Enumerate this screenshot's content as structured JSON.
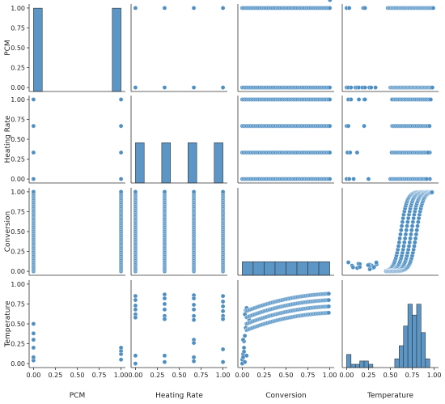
{
  "colors": {
    "mark": "#4e8fc3",
    "edge": "#ffffff",
    "axis": "#333333",
    "bar_fill": "#5b96c7",
    "bar_edge": "#333333"
  },
  "chart_data": {
    "type": "pairplot",
    "variables": [
      "PCM",
      "Heating Rate",
      "Conversion",
      "Temperature"
    ],
    "ticks": {
      "PCM": {
        "values": [
          0.0,
          0.25,
          0.5,
          0.75,
          1.0
        ],
        "labels": [
          "0.00",
          "0.25",
          "0.50",
          "0.75",
          "1.00"
        ]
      },
      "Heating Rate": {
        "values": [
          0.0,
          0.25,
          0.5,
          0.75,
          1.0
        ],
        "labels": [
          "0.00",
          "0.25",
          "0.50",
          "0.75",
          "1.00"
        ]
      },
      "Conversion": {
        "values": [
          0.0,
          0.25,
          0.5,
          0.75,
          1.0
        ],
        "labels": [
          "0.00",
          "0.25",
          "0.50",
          "0.75",
          "1.00"
        ]
      },
      "Temperature": {
        "values": [
          0.0,
          0.25,
          0.5,
          0.75,
          1.0
        ],
        "labels": [
          "0.00",
          "0.25",
          "0.50",
          "0.75",
          "1.00"
        ]
      }
    },
    "ylim": [
      -0.05,
      1.05
    ],
    "heating_rate_levels": [
      0.0,
      0.333,
      0.667,
      1.0
    ],
    "pcm_levels": [
      0.0,
      1.0
    ],
    "diagonal_histograms": [
      {
        "variable": "PCM",
        "bins": [
          [
            0.0,
            0.1,
            1.0
          ],
          [
            0.9,
            1.0,
            1.0
          ]
        ],
        "ymax": 1.05
      },
      {
        "variable": "Heating Rate",
        "bins": [
          [
            0.0,
            0.1,
            0.46
          ],
          [
            0.3,
            0.4,
            0.46
          ],
          [
            0.6,
            0.7,
            0.46
          ],
          [
            0.9,
            1.0,
            0.46
          ]
        ],
        "ymax": 1.0
      },
      {
        "variable": "Conversion",
        "bins": [
          [
            0.0,
            0.125,
            0.155
          ],
          [
            0.125,
            0.25,
            0.155
          ],
          [
            0.25,
            0.375,
            0.155
          ],
          [
            0.375,
            0.5,
            0.155
          ],
          [
            0.5,
            0.625,
            0.155
          ],
          [
            0.625,
            0.75,
            0.155
          ],
          [
            0.75,
            0.875,
            0.155
          ],
          [
            0.875,
            1.0,
            0.155
          ]
        ],
        "ymax": 1.0
      },
      {
        "variable": "Temperature",
        "bins": [
          [
            0.0,
            0.05,
            0.06
          ],
          [
            0.05,
            0.1,
            0.015
          ],
          [
            0.1,
            0.15,
            0.015
          ],
          [
            0.15,
            0.2,
            0.03
          ],
          [
            0.2,
            0.25,
            0.03
          ],
          [
            0.25,
            0.3,
            0.015
          ],
          [
            0.55,
            0.6,
            0.04
          ],
          [
            0.6,
            0.65,
            0.1
          ],
          [
            0.65,
            0.7,
            0.19
          ],
          [
            0.7,
            0.75,
            0.29
          ],
          [
            0.75,
            0.8,
            0.24
          ],
          [
            0.8,
            0.85,
            0.29
          ],
          [
            0.85,
            0.9,
            0.16
          ],
          [
            0.9,
            0.95,
            0.04
          ]
        ],
        "ymax": 0.4
      }
    ],
    "scatter_pairs": [
      {
        "row": "PCM",
        "col": "Heating Rate",
        "points": [
          [
            0.0,
            1.0
          ],
          [
            0.333,
            1.0
          ],
          [
            0.667,
            1.0
          ],
          [
            1.0,
            1.0
          ],
          [
            0.0,
            0.0
          ],
          [
            0.333,
            0.0
          ],
          [
            0.667,
            0.0
          ],
          [
            1.0,
            0.0
          ]
        ]
      },
      {
        "row": "Heating Rate",
        "col": "PCM",
        "points": [
          [
            0.0,
            1.0
          ],
          [
            0.0,
            0.667
          ],
          [
            0.0,
            0.333
          ],
          [
            0.0,
            0.0
          ],
          [
            1.0,
            1.0
          ],
          [
            1.0,
            0.667
          ],
          [
            1.0,
            0.333
          ],
          [
            1.0,
            0.0
          ]
        ]
      },
      {
        "row": "Temperature",
        "col": "Heating Rate",
        "points": [
          [
            0.0,
            0.85
          ],
          [
            0.0,
            0.8
          ],
          [
            0.0,
            0.73
          ],
          [
            0.0,
            0.68
          ],
          [
            0.0,
            0.62
          ],
          [
            0.0,
            0.58
          ],
          [
            0.0,
            0.1
          ],
          [
            0.0,
            0.0
          ],
          [
            0.333,
            0.87
          ],
          [
            0.333,
            0.82
          ],
          [
            0.333,
            0.75
          ],
          [
            0.333,
            0.68
          ],
          [
            0.333,
            0.6
          ],
          [
            0.333,
            0.56
          ],
          [
            0.333,
            0.1
          ],
          [
            0.333,
            0.02
          ],
          [
            0.667,
            0.86
          ],
          [
            0.667,
            0.82
          ],
          [
            0.667,
            0.74
          ],
          [
            0.667,
            0.68
          ],
          [
            0.667,
            0.6
          ],
          [
            0.667,
            0.55
          ],
          [
            0.667,
            0.3
          ],
          [
            0.667,
            0.26
          ],
          [
            0.667,
            0.08
          ],
          [
            0.667,
            0.03
          ],
          [
            1.0,
            0.85
          ],
          [
            1.0,
            0.78
          ],
          [
            1.0,
            0.72
          ],
          [
            1.0,
            0.66
          ],
          [
            1.0,
            0.6
          ],
          [
            1.0,
            0.56
          ],
          [
            1.0,
            0.18
          ],
          [
            1.0,
            0.02
          ]
        ]
      },
      {
        "row": "Heating Rate",
        "col": "Temperature",
        "points": [
          [
            0.02,
            1.0
          ],
          [
            0.05,
            1.0
          ],
          [
            0.14,
            1.0
          ],
          [
            0.2,
            1.0
          ],
          [
            0.21,
            1.0
          ],
          [
            0.52,
            1.0
          ],
          [
            0.95,
            1.0
          ],
          [
            0.0,
            0.667
          ],
          [
            0.02,
            0.667
          ],
          [
            0.2,
            0.667
          ],
          [
            0.52,
            0.667
          ],
          [
            0.95,
            0.667
          ],
          [
            0.01,
            0.333
          ],
          [
            0.04,
            0.333
          ],
          [
            0.12,
            0.333
          ],
          [
            0.52,
            0.333
          ],
          [
            0.95,
            0.333
          ],
          [
            0.0,
            0.0
          ],
          [
            0.03,
            0.0
          ],
          [
            0.08,
            0.0
          ],
          [
            0.25,
            0.0
          ],
          [
            0.5,
            0.0
          ],
          [
            0.95,
            0.0
          ]
        ]
      },
      {
        "row": "PCM",
        "col": "Temperature",
        "points": [
          [
            0.0,
            1.0
          ],
          [
            0.03,
            1.0
          ],
          [
            0.19,
            1.0
          ],
          [
            0.21,
            1.0
          ],
          [
            0.0,
            0.0
          ],
          [
            0.02,
            0.0
          ],
          [
            0.05,
            0.0
          ],
          [
            0.1,
            0.0
          ],
          [
            0.12,
            0.0
          ],
          [
            0.14,
            0.0
          ],
          [
            0.18,
            0.0
          ],
          [
            0.21,
            0.0
          ],
          [
            0.26,
            0.0
          ],
          [
            0.28,
            0.0
          ],
          [
            0.33,
            0.0
          ]
        ]
      },
      {
        "row": "Temperature",
        "col": "PCM",
        "points": [
          [
            0.0,
            0.04
          ],
          [
            0.0,
            0.08
          ],
          [
            0.0,
            0.2
          ],
          [
            0.0,
            0.3
          ],
          [
            0.0,
            0.38
          ],
          [
            0.0,
            0.5
          ],
          [
            1.0,
            0.05
          ],
          [
            1.0,
            0.12
          ],
          [
            1.0,
            0.16
          ],
          [
            1.0,
            0.2
          ]
        ]
      },
      {
        "row": "Temperature",
        "col": "Conversion",
        "points": [
          [
            0.0,
            0.0
          ],
          [
            0.0,
            0.05
          ],
          [
            0.01,
            0.12
          ],
          [
            0.02,
            0.2
          ],
          [
            0.02,
            0.28
          ],
          [
            0.03,
            0.35
          ],
          [
            0.03,
            0.02
          ],
          [
            0.05,
            0.1
          ],
          [
            0.04,
            0.45
          ],
          [
            0.06,
            0.5
          ],
          [
            0.08,
            0.55
          ],
          [
            0.03,
            0.62
          ],
          [
            0.04,
            0.67
          ],
          [
            0.05,
            0.7
          ],
          [
            0.01,
            0.08
          ],
          [
            0.02,
            0.15
          ],
          [
            0.01,
            0.3
          ]
        ]
      }
    ]
  }
}
